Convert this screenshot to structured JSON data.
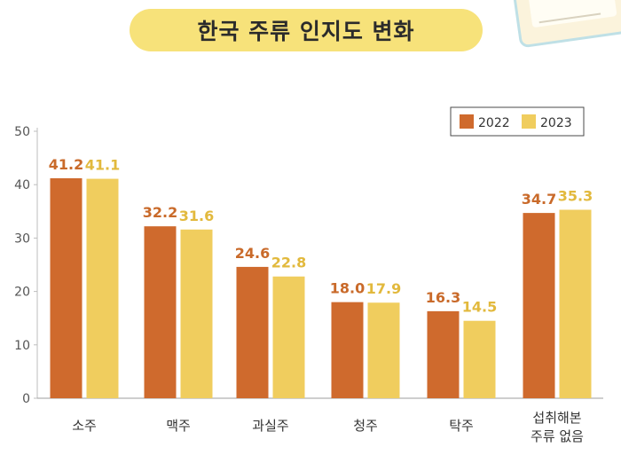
{
  "page": {
    "title": "한국 주류 인지도 변화"
  },
  "colors": {
    "series_2022": "#cf6a2d",
    "series_2023": "#f0cd5e",
    "label_2022": "#c96a2a",
    "label_2023": "#e2b93d",
    "title_pill": "#f7e27a",
    "axis": "#555555"
  },
  "chart_data": {
    "type": "bar",
    "title": "한국 주류 인지도 변화",
    "categories": [
      "소주",
      "맥주",
      "과실주",
      "청주",
      "탁주",
      "섭취해본\n주류 없음"
    ],
    "series": [
      {
        "name": "2022",
        "values": [
          41.2,
          32.2,
          24.6,
          18.0,
          16.3,
          34.7
        ]
      },
      {
        "name": "2023",
        "values": [
          41.1,
          31.6,
          22.8,
          17.9,
          14.5,
          35.3
        ]
      }
    ],
    "data_labels": [
      [
        "41.2",
        "32.2",
        "24.6",
        "18.0",
        "16.3",
        "34.7"
      ],
      [
        "41.1",
        "31.6",
        "22.8",
        "17.9",
        "14.5",
        "35.3"
      ]
    ],
    "yticks": [
      0,
      10,
      20,
      30,
      40,
      50
    ],
    "ylim": [
      0,
      50
    ],
    "xlabel": "",
    "ylabel": "",
    "grid": false,
    "legend": "top-right"
  }
}
